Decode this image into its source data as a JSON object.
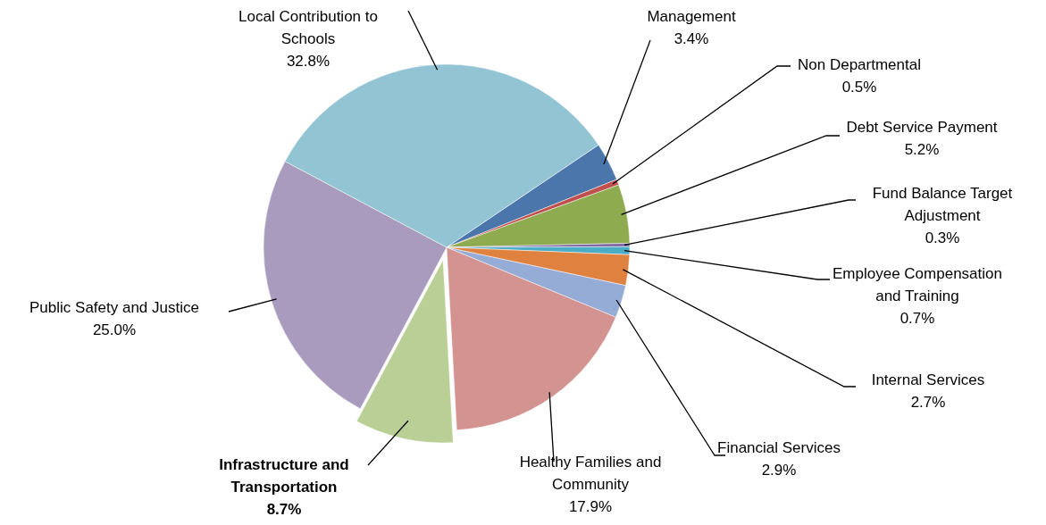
{
  "chart_data": {
    "type": "pie",
    "categories": [
      "Management",
      "Non Departmental",
      "Debt Service Payment",
      "Fund Balance Target Adjustment",
      "Employee Compensation and Training",
      "Internal Services",
      "Financial Services",
      "Healthy Families and Community",
      "Infrastructure and Transportation",
      "Public Safety and Justice",
      "Local Contribution to Schools"
    ],
    "values": [
      3.4,
      0.5,
      5.2,
      0.3,
      0.7,
      2.7,
      2.9,
      17.9,
      8.7,
      25.0,
      32.8
    ],
    "value_labels": [
      "3.4%",
      "0.5%",
      "5.2%",
      "0.3%",
      "0.7%",
      "2.7%",
      "2.9%",
      "17.9%",
      "8.7%",
      "25.0%",
      "32.8%"
    ],
    "colors": [
      "#4a76ab",
      "#c0504d",
      "#8eab50",
      "#7f64a0",
      "#4bacc6",
      "#e0823f",
      "#95acd6",
      "#d39391",
      "#b9cf95",
      "#a99bbe",
      "#93c4d4"
    ],
    "legend": false
  }
}
